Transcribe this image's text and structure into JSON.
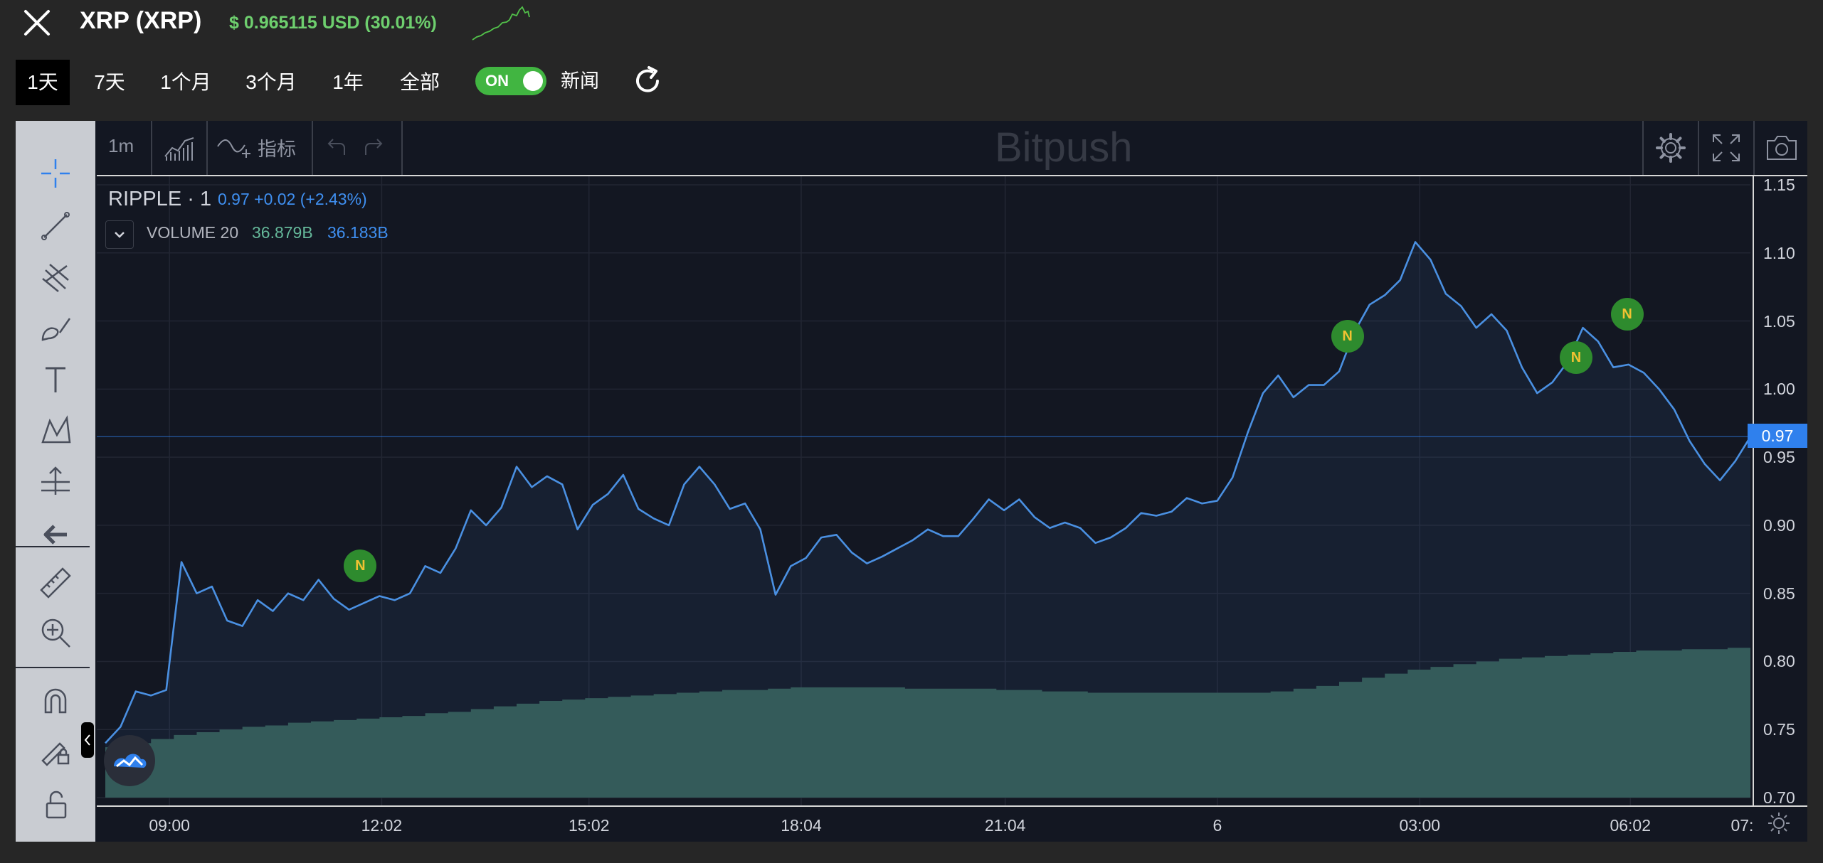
{
  "header": {
    "close_icon": "close-icon",
    "title": "XRP (XRP)",
    "price": "$ 0.965115 USD (30.01%)",
    "price_color": "#6ecf6e"
  },
  "ranges": {
    "tabs": [
      {
        "label": "1天",
        "active": true
      },
      {
        "label": "7天",
        "active": false
      },
      {
        "label": "1个月",
        "active": false
      },
      {
        "label": "3个月",
        "active": false
      },
      {
        "label": "1年",
        "active": false
      },
      {
        "label": "全部",
        "active": false
      }
    ],
    "toggle_label": "ON",
    "toggle_on": true,
    "news_label": "新闻",
    "refresh_icon": "refresh-icon"
  },
  "toolbar": {
    "interval": "1m",
    "indicators_label": "指标",
    "watermark": "Bitpush"
  },
  "legend": {
    "symbol": "RIPPLE",
    "interval": "· 1",
    "quote": "0.97 +0.02 (+2.43%)",
    "volume_label": "VOLUME 20",
    "volume_a": "36.879B",
    "volume_b": "36.183B"
  },
  "price_tag": "0.97",
  "news_marker_label": "N",
  "colors": {
    "line": "#4a90e2",
    "volume": "#32574f",
    "accent": "#2f80ed",
    "toggle": "#41b541"
  },
  "chart_data": {
    "type": "line",
    "ylim": [
      0.7,
      1.15
    ],
    "yticks": [
      "1.15",
      "1.10",
      "1.05",
      "1.00",
      "0.95",
      "0.90",
      "0.85",
      "0.80",
      "0.75",
      "0.70"
    ],
    "xticks": [
      "09:00",
      "12:02",
      "15:02",
      "18:04",
      "21:04",
      "6",
      "03:00",
      "06:02",
      "07:"
    ],
    "series": [
      {
        "values": [
          0.74,
          0.752,
          0.778,
          0.775,
          0.779,
          0.873,
          0.85,
          0.855,
          0.83,
          0.826,
          0.845,
          0.837,
          0.85,
          0.845,
          0.86,
          0.846,
          0.838,
          0.843,
          0.848,
          0.845,
          0.85,
          0.87,
          0.865,
          0.883,
          0.911,
          0.9,
          0.913,
          0.943,
          0.928,
          0.936,
          0.93,
          0.897,
          0.915,
          0.923,
          0.937,
          0.912,
          0.905,
          0.9,
          0.93,
          0.943,
          0.93,
          0.912,
          0.916,
          0.897,
          0.849,
          0.87,
          0.876,
          0.891,
          0.893,
          0.88,
          0.872,
          0.877,
          0.883,
          0.889,
          0.897,
          0.892,
          0.892,
          0.905,
          0.919,
          0.911,
          0.919,
          0.906,
          0.898,
          0.902,
          0.898,
          0.887,
          0.891,
          0.898,
          0.909,
          0.907,
          0.91,
          0.92,
          0.916,
          0.918,
          0.935,
          0.968,
          0.997,
          1.01,
          0.994,
          1.003,
          1.003,
          1.013,
          1.042,
          1.062,
          1.069,
          1.08,
          1.108,
          1.095,
          1.07,
          1.061,
          1.045,
          1.055,
          1.043,
          1.016,
          0.997,
          1.005,
          1.02,
          1.045,
          1.035,
          1.016,
          1.018,
          1.012,
          1.0,
          0.985,
          0.962,
          0.945,
          0.933,
          0.947,
          0.965
        ]
      },
      {
        "name": "VOLUME",
        "values": [
          0.737,
          0.74,
          0.743,
          0.746,
          0.748,
          0.75,
          0.752,
          0.753,
          0.755,
          0.756,
          0.757,
          0.758,
          0.759,
          0.76,
          0.762,
          0.763,
          0.765,
          0.767,
          0.769,
          0.771,
          0.772,
          0.773,
          0.774,
          0.775,
          0.776,
          0.777,
          0.778,
          0.779,
          0.779,
          0.78,
          0.781,
          0.781,
          0.781,
          0.781,
          0.781,
          0.78,
          0.78,
          0.78,
          0.78,
          0.779,
          0.779,
          0.778,
          0.778,
          0.777,
          0.777,
          0.777,
          0.777,
          0.777,
          0.777,
          0.777,
          0.777,
          0.778,
          0.78,
          0.782,
          0.785,
          0.788,
          0.791,
          0.794,
          0.796,
          0.798,
          0.8,
          0.802,
          0.803,
          0.804,
          0.805,
          0.806,
          0.807,
          0.808,
          0.808,
          0.809,
          0.809,
          0.81
        ]
      }
    ],
    "news_markers": [
      {
        "x": 0.155,
        "y": 0.87
      },
      {
        "x": 0.755,
        "y": 1.039
      },
      {
        "x": 0.894,
        "y": 1.023
      },
      {
        "x": 0.925,
        "y": 1.055
      }
    ],
    "current_price_line": 0.9651
  }
}
